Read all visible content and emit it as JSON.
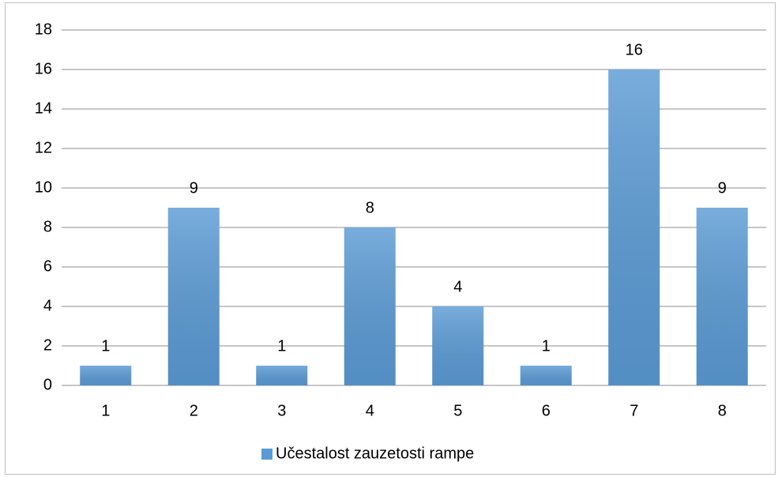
{
  "chart_data": {
    "type": "bar",
    "categories": [
      "1",
      "2",
      "3",
      "4",
      "5",
      "6",
      "7",
      "8"
    ],
    "series": [
      {
        "name": "Učestalost zauzetosti rampe",
        "color": "#5b9bd5",
        "values": [
          1,
          9,
          1,
          8,
          4,
          1,
          16,
          9
        ]
      }
    ],
    "ylim": [
      0,
      18
    ],
    "yticks": [
      0,
      2,
      4,
      6,
      8,
      10,
      12,
      14,
      16,
      18
    ],
    "grid": true,
    "legend": "bottom"
  }
}
